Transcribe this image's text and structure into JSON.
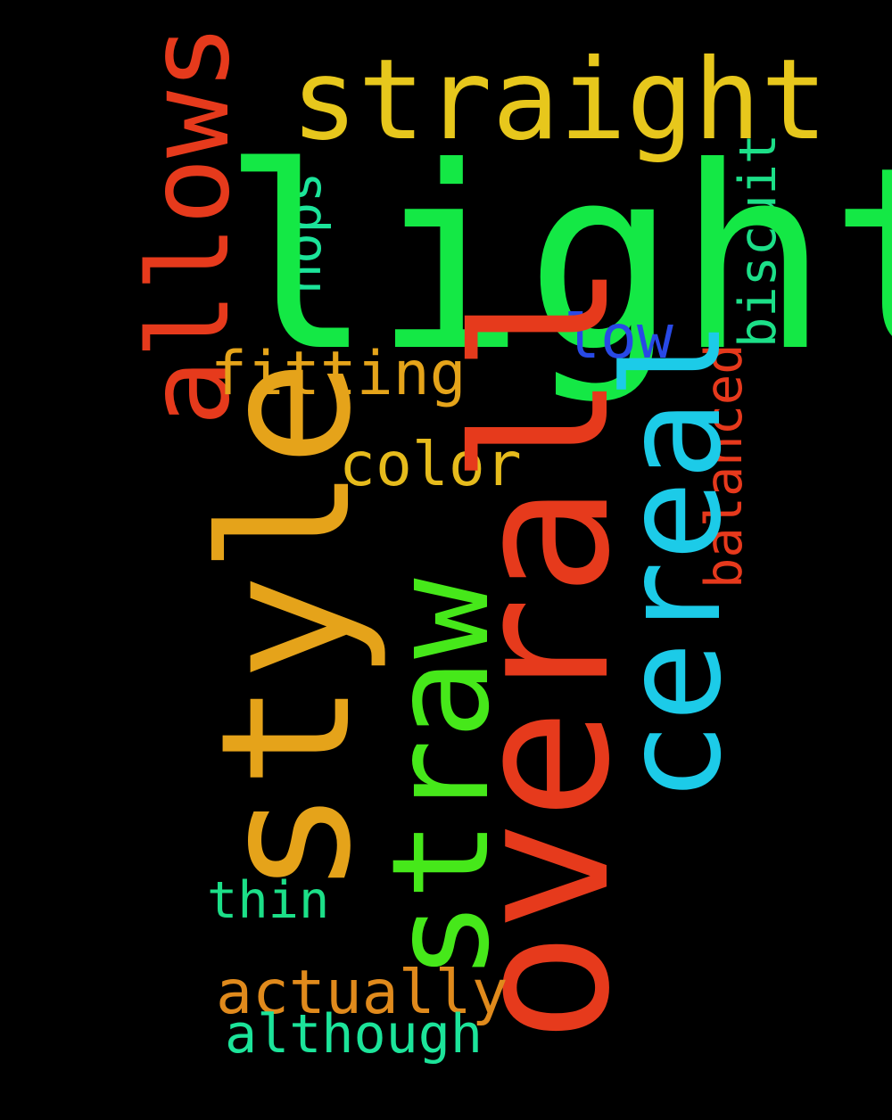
{
  "background_color": "#000000",
  "words": {
    "light": {
      "text": "light",
      "color": "#14e845",
      "orientation": "horizontal"
    },
    "overall": {
      "text": "overall",
      "color": "#e63a1c",
      "orientation": "vertical"
    },
    "style": {
      "text": "style",
      "color": "#e5a31a",
      "orientation": "vertical"
    },
    "cereal": {
      "text": "cereal",
      "color": "#1ccbe8",
      "orientation": "vertical"
    },
    "straw": {
      "text": "straw",
      "color": "#46e81a",
      "orientation": "vertical"
    },
    "straight": {
      "text": "straight",
      "color": "#e7c71c",
      "orientation": "horizontal"
    },
    "allows": {
      "text": "allows",
      "color": "#e63a1c",
      "orientation": "vertical"
    },
    "fitting": {
      "text": "fitting",
      "color": "#e5a41a",
      "orientation": "horizontal"
    },
    "low": {
      "text": "low",
      "color": "#2849e6",
      "orientation": "horizontal"
    },
    "color": {
      "text": "color",
      "color": "#e6bb1c",
      "orientation": "horizontal"
    },
    "hops": {
      "text": "hops",
      "color": "#1ce49a",
      "orientation": "vertical"
    },
    "biscuit": {
      "text": "biscuit",
      "color": "#1cdf88",
      "orientation": "vertical"
    },
    "balanced": {
      "text": "balanced",
      "color": "#e6391c",
      "orientation": "vertical"
    },
    "thin": {
      "text": "thin",
      "color": "#1cdf88",
      "orientation": "horizontal"
    },
    "actually": {
      "text": "actually",
      "color": "#e08a1c",
      "orientation": "horizontal"
    },
    "although": {
      "text": "although",
      "color": "#1ce49a",
      "orientation": "horizontal"
    }
  }
}
